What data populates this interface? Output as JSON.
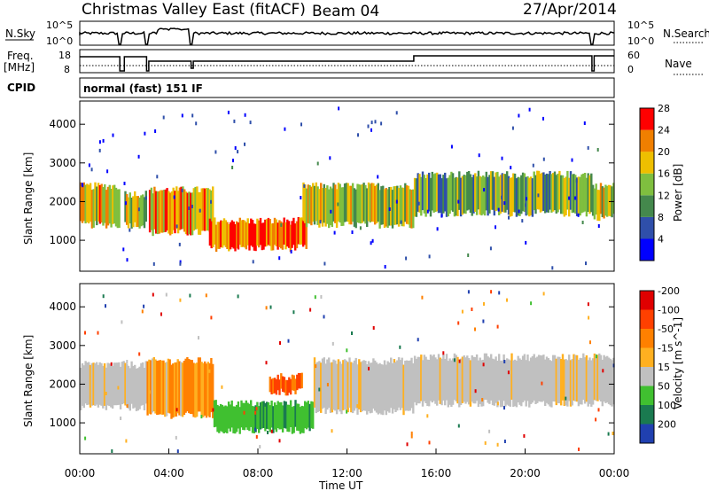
{
  "header": {
    "title": "Christmas Valley East (fitACF)",
    "beam": "Beam 04",
    "date": "27/Apr/2014"
  },
  "strip_nsky": {
    "left_label": "N.Sky",
    "right_label": "N.Search",
    "tick_top": "10^5",
    "tick_bottom": "10^0",
    "right_tick_top": "10^5",
    "right_tick_bottom": "10^0"
  },
  "strip_freq": {
    "left_label_line1": "Freq.",
    "left_label_line2": "[MHz]",
    "right_label": "Nave",
    "tick_top": "18",
    "tick_bottom": "8",
    "right_tick_top": "60",
    "right_tick_bottom": "0"
  },
  "cpid": {
    "label": "CPID",
    "value": "normal (fast) 151 IF"
  },
  "chart_data": [
    {
      "type": "heatmap",
      "name": "power",
      "ylabel": "Slant Range [km]",
      "yticks": [
        "1000",
        "2000",
        "3000",
        "4000"
      ],
      "ylim": [
        200,
        4600
      ],
      "colorbar": {
        "label": "Power [dB]",
        "ticks": [
          "4",
          "8",
          "12",
          "16",
          "20",
          "24",
          "28"
        ],
        "colors": [
          "#0000ff",
          "#2f4faa",
          "#44884c",
          "#7fbf3f",
          "#eebf00",
          "#f07f00",
          "#ff0000"
        ]
      },
      "regions": [
        {
          "t0": 0.0,
          "t1": 1.8,
          "r0": 1400,
          "r1": 2400,
          "level": 0.65
        },
        {
          "t0": 2.0,
          "t1": 3.0,
          "r0": 1400,
          "r1": 2200,
          "level": 0.6
        },
        {
          "t0": 3.1,
          "t1": 6.0,
          "r0": 1200,
          "r1": 2300,
          "level": 0.7
        },
        {
          "t0": 5.8,
          "t1": 10.2,
          "r0": 800,
          "r1": 1500,
          "level": 0.85
        },
        {
          "t0": 10.0,
          "t1": 15.0,
          "r0": 1400,
          "r1": 2400,
          "level": 0.55
        },
        {
          "t0": 15.0,
          "t1": 23.0,
          "r0": 1700,
          "r1": 2700,
          "level": 0.45
        },
        {
          "t0": 23.0,
          "t1": 24.0,
          "r0": 1600,
          "r1": 2400,
          "level": 0.55
        }
      ]
    },
    {
      "type": "heatmap",
      "name": "velocity",
      "ylabel": "Slant Range [km]",
      "xlabel": "Time UT",
      "xticks": [
        "00:00",
        "04:00",
        "08:00",
        "12:00",
        "16:00",
        "20:00",
        "00:00"
      ],
      "yticks": [
        "1000",
        "2000",
        "3000",
        "4000"
      ],
      "ylim": [
        200,
        4600
      ],
      "colorbar": {
        "label": "Velocity [m s^-1]",
        "ticks": [
          "200",
          "100",
          "50",
          "15",
          "-15",
          "-50",
          "-100",
          "-200"
        ],
        "colors": [
          "#2040b0",
          "#1a7a50",
          "#40c030",
          "#c0c0c0",
          "#ffb020",
          "#ff8000",
          "#ff4000",
          "#e00000"
        ]
      },
      "regions": [
        {
          "t0": 0.0,
          "t1": 3.0,
          "r0": 1400,
          "r1": 2500,
          "vel": 0
        },
        {
          "t0": 3.0,
          "t1": 6.0,
          "r0": 1200,
          "r1": 2600,
          "vel": -30
        },
        {
          "t0": 6.0,
          "t1": 10.5,
          "r0": 800,
          "r1": 1500,
          "vel": 60
        },
        {
          "t0": 8.5,
          "t1": 10.0,
          "r0": 1800,
          "r1": 2200,
          "vel": -80
        },
        {
          "t0": 10.5,
          "t1": 15.0,
          "r0": 1300,
          "r1": 2600,
          "vel": 0
        },
        {
          "t0": 15.0,
          "t1": 24.0,
          "r0": 1500,
          "r1": 2700,
          "vel": 0
        }
      ]
    }
  ]
}
